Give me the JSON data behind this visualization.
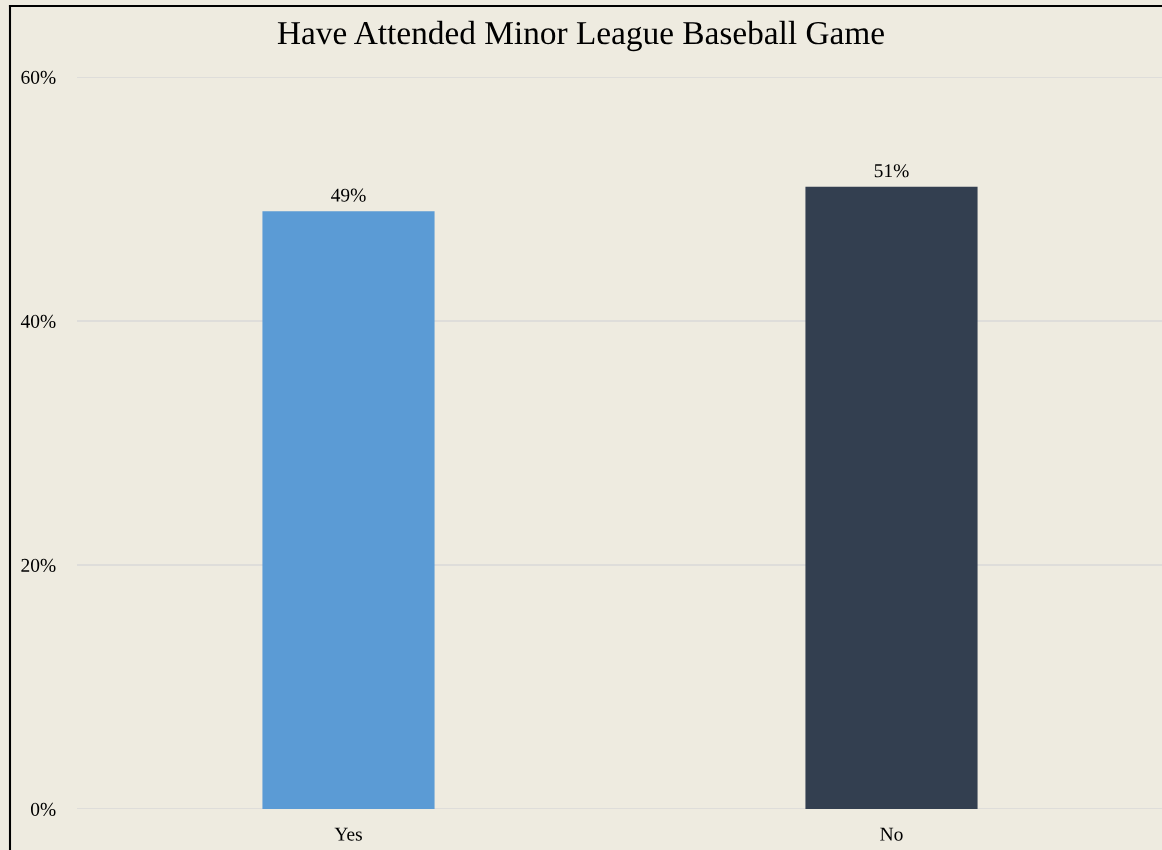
{
  "chart_data": {
    "type": "bar",
    "title": "Have Attended Minor League Baseball Game",
    "categories": [
      "Yes",
      "No"
    ],
    "values": [
      49,
      51
    ],
    "colors": [
      "#5b9bd5",
      "#333f50"
    ],
    "value_labels": [
      "49%",
      "51%"
    ],
    "ylim": [
      0,
      60
    ],
    "yticks": [
      {
        "value": 0,
        "label": "0%"
      },
      {
        "value": 20,
        "label": "20%"
      },
      {
        "value": 40,
        "label": "40%"
      },
      {
        "value": 60,
        "label": "60%"
      }
    ],
    "grid": "y"
  }
}
